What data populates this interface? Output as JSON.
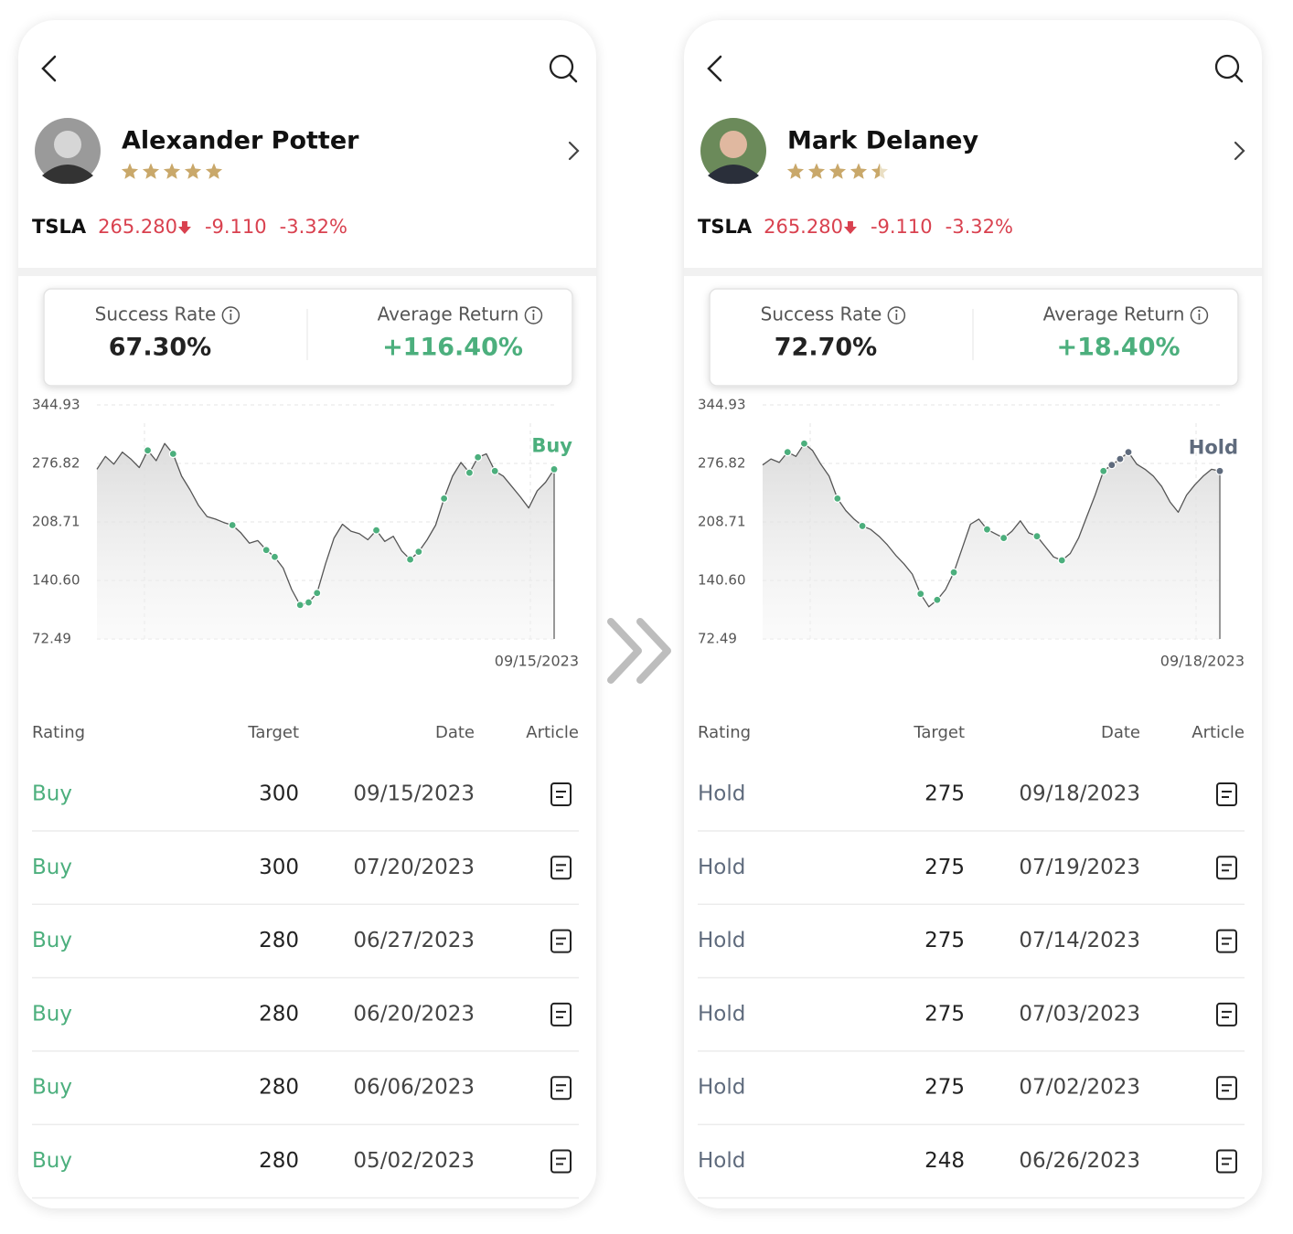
{
  "panels": [
    {
      "analyst": {
        "name": "Alexander Potter",
        "stars": 5
      },
      "quote": {
        "ticker": "TSLA",
        "price": "265.280",
        "change": "-9.110",
        "change_pct": "-3.32%"
      },
      "stats": [
        {
          "label": "Success Rate",
          "value": "67.30%"
        },
        {
          "label": "Average Return",
          "value": "+116.40%"
        }
      ],
      "chart": {
        "type": "line",
        "color": "#555555",
        "ylim": [
          72.49,
          344.93
        ],
        "yticks": [
          72.49,
          {
            "value": 140.6,
            "label": "140.60"
          },
          208.71,
          276.82,
          344.93
        ],
        "values": [
          270,
          285,
          276,
          290,
          282,
          272,
          292,
          280,
          300,
          288,
          262,
          246,
          228,
          215,
          212,
          208,
          205,
          196,
          184,
          187,
          176,
          168,
          155,
          130,
          112,
          115,
          126,
          160,
          190,
          206,
          198,
          195,
          188,
          199,
          186,
          192,
          175,
          165,
          174,
          188,
          205,
          236,
          262,
          278,
          266,
          284,
          288,
          268,
          262,
          250,
          238,
          225,
          245,
          255,
          270
        ],
        "markers": [
          {
            "index": 6,
            "color": "#4caf7d"
          },
          {
            "index": 9,
            "color": "#4caf7d"
          },
          {
            "index": 16,
            "color": "#4caf7d"
          },
          {
            "index": 20,
            "color": "#4caf7d"
          },
          {
            "index": 21,
            "color": "#4caf7d"
          },
          {
            "index": 24,
            "color": "#4caf7d"
          },
          {
            "index": 25,
            "color": "#4caf7d"
          },
          {
            "index": 26,
            "color": "#4caf7d"
          },
          {
            "index": 33,
            "color": "#4caf7d"
          },
          {
            "index": 37,
            "color": "#4caf7d"
          },
          {
            "index": 38,
            "color": "#4caf7d"
          },
          {
            "index": 41,
            "color": "#4caf7d"
          },
          {
            "index": 44,
            "color": "#4caf7d"
          },
          {
            "index": 45,
            "color": "#4caf7d"
          },
          {
            "index": 47,
            "color": "#4caf7d"
          },
          {
            "index": 54,
            "color": "#4caf7d"
          }
        ],
        "latest_rating": "Buy",
        "rating_color": "#4caf7d",
        "end_date": "09/15/2023"
      },
      "table": {
        "columns": [
          "Rating",
          "Target",
          "Date",
          "Article"
        ],
        "rating_color": "#4caf7d",
        "rows": [
          [
            "Buy",
            300,
            "09/15/2023"
          ],
          [
            "Buy",
            300,
            "07/20/2023"
          ],
          [
            "Buy",
            280,
            "06/27/2023"
          ],
          [
            "Buy",
            280,
            "06/20/2023"
          ],
          [
            "Buy",
            280,
            "06/06/2023"
          ],
          [
            "Buy",
            280,
            "05/02/2023"
          ]
        ]
      }
    },
    {
      "analyst": {
        "name": "Mark Delaney",
        "stars": 4.5
      },
      "quote": {
        "ticker": "TSLA",
        "price": "265.280",
        "change": "-9.110",
        "change_pct": "-3.32%"
      },
      "stats": [
        {
          "label": "Success Rate",
          "value": "72.70%"
        },
        {
          "label": "Average Return",
          "value": "+18.40%"
        }
      ],
      "chart": {
        "type": "line",
        "color": "#555555",
        "ylim": [
          72.49,
          344.93
        ],
        "yticks": [
          72.49,
          {
            "value": 140.6,
            "label": "140.60"
          },
          208.71,
          276.82,
          344.93
        ],
        "values": [
          275,
          282,
          278,
          290,
          285,
          300,
          292,
          276,
          262,
          236,
          222,
          212,
          204,
          200,
          192,
          182,
          170,
          160,
          148,
          125,
          110,
          118,
          130,
          150,
          178,
          206,
          212,
          200,
          195,
          190,
          198,
          210,
          196,
          192,
          180,
          168,
          164,
          172,
          190,
          215,
          240,
          268,
          275,
          282,
          290,
          276,
          270,
          262,
          250,
          232,
          220,
          240,
          252,
          262,
          270,
          268
        ],
        "markers": [
          {
            "index": 3,
            "color": "#4caf7d"
          },
          {
            "index": 5,
            "color": "#4caf7d"
          },
          {
            "index": 9,
            "color": "#4caf7d"
          },
          {
            "index": 12,
            "color": "#4caf7d"
          },
          {
            "index": 19,
            "color": "#4caf7d"
          },
          {
            "index": 21,
            "color": "#4caf7d"
          },
          {
            "index": 23,
            "color": "#4caf7d"
          },
          {
            "index": 27,
            "color": "#4caf7d"
          },
          {
            "index": 29,
            "color": "#4caf7d"
          },
          {
            "index": 33,
            "color": "#4caf7d"
          },
          {
            "index": 36,
            "color": "#4caf7d"
          },
          {
            "index": 41,
            "color": "#4caf7d"
          },
          {
            "index": 42,
            "color": "#5f6b7d"
          },
          {
            "index": 43,
            "color": "#5f6b7d"
          },
          {
            "index": 44,
            "color": "#5f6b7d"
          },
          {
            "index": 55,
            "color": "#5f6b7d"
          }
        ],
        "latest_rating": "Hold",
        "rating_color": "#5f6b7d",
        "end_date": "09/18/2023"
      },
      "table": {
        "columns": [
          "Rating",
          "Target",
          "Date",
          "Article"
        ],
        "rating_color": "#5f6b7d",
        "rows": [
          [
            "Hold",
            275,
            "09/18/2023"
          ],
          [
            "Hold",
            275,
            "07/19/2023"
          ],
          [
            "Hold",
            275,
            "07/14/2023"
          ],
          [
            "Hold",
            275,
            "07/03/2023"
          ],
          [
            "Hold",
            275,
            "07/02/2023"
          ],
          [
            "Hold",
            248,
            "06/26/2023"
          ]
        ]
      }
    }
  ]
}
